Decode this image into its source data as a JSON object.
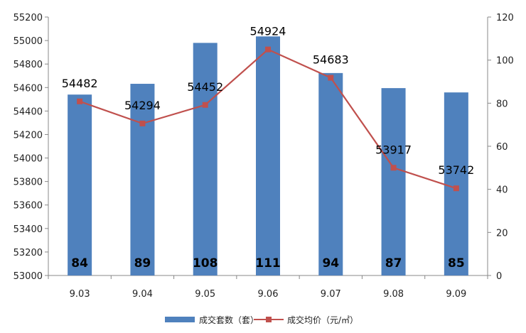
{
  "chart_data": {
    "type": "bar",
    "categories": [
      "9.03",
      "9.04",
      "9.05",
      "9.06",
      "9.07",
      "9.08",
      "9.09"
    ],
    "series": [
      {
        "name": "成交套数（套）",
        "type": "bar",
        "axis": "right",
        "values": [
          84,
          89,
          108,
          111,
          94,
          87,
          85
        ],
        "color": "#4F81BD"
      },
      {
        "name": "成交均价（元/㎡）",
        "type": "line",
        "axis": "left",
        "values": [
          54482,
          54294,
          54452,
          54924,
          54683,
          53917,
          53742
        ],
        "color": "#C0504D"
      }
    ],
    "left_axis": {
      "min": 53000,
      "max": 55200,
      "step": 200
    },
    "right_axis": {
      "min": 0,
      "max": 120,
      "step": 20
    },
    "legend_position": "bottom",
    "grid": false
  }
}
